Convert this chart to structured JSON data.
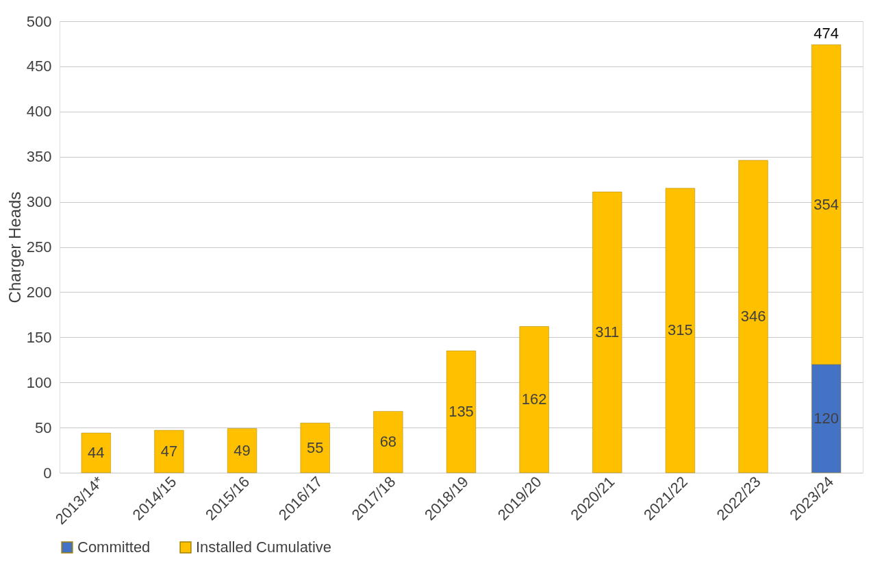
{
  "chart_data": {
    "type": "bar",
    "stacked": true,
    "ylabel": "Charger Heads",
    "categories": [
      "2013/14*",
      "2014/15",
      "2015/16",
      "2016/17",
      "2017/18",
      "2018/19",
      "2019/20",
      "2020/21",
      "2021/22",
      "2022/23",
      "2023/24"
    ],
    "series": [
      {
        "name": "Committed",
        "color": "#4472c4",
        "values": [
          null,
          null,
          null,
          null,
          null,
          null,
          null,
          null,
          null,
          null,
          120
        ]
      },
      {
        "name": "Installed Cumulative",
        "color": "#ffc000",
        "values": [
          44,
          47,
          49,
          55,
          68,
          135,
          162,
          311,
          315,
          346,
          354
        ]
      }
    ],
    "totals": [
      null,
      null,
      null,
      null,
      null,
      null,
      null,
      null,
      null,
      null,
      "474"
    ],
    "data_labels": true,
    "ylim": [
      0,
      500
    ],
    "yticks": [
      0,
      50,
      100,
      150,
      200,
      250,
      300,
      350,
      400,
      450,
      500
    ],
    "grid": "y",
    "legend": "bottom"
  }
}
